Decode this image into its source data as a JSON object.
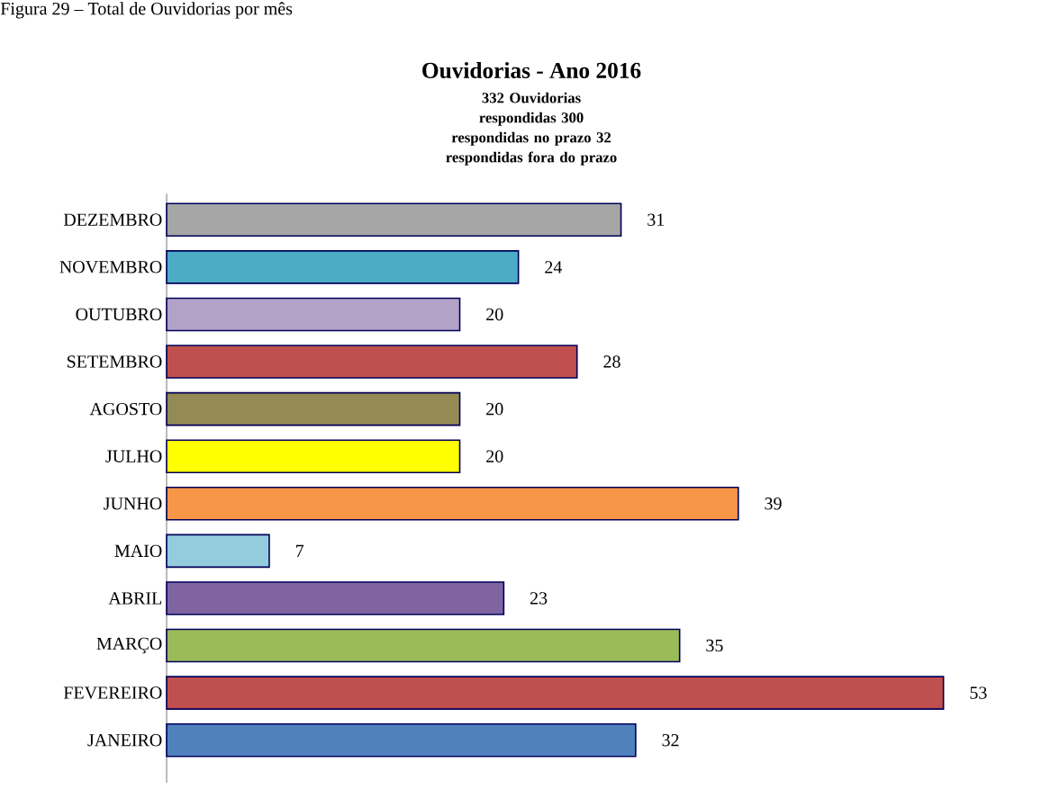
{
  "chart_data": {
    "type": "bar",
    "orientation": "horizontal",
    "title": "Ouvidorias - Ano 2016",
    "subtitle": "332 Ouvidorias respondidas 300 respondidas no prazo 32 respondidas fora do prazo",
    "annotations": [
      "Figura 29 – Total de Ouvidorias por mês"
    ],
    "categories": [
      "DEZEMBRO",
      "NOVEMBRO",
      "OUTUBRO",
      "SETEMBRO",
      "AGOSTO",
      "JULHO",
      "JUNHO",
      "MAIO",
      "ABRIL",
      "MARÇO",
      "FEVEREIRO",
      "JANEIRO"
    ],
    "values": [
      31,
      24,
      20,
      28,
      20,
      20,
      39,
      7,
      23,
      35,
      53,
      32
    ],
    "colors": [
      "#a6a6a6",
      "#4bacc6",
      "#b3a2c7",
      "#c0504d",
      "#948a54",
      "#ffff00",
      "#f79646",
      "#93cddd",
      "#8064a2",
      "#9bbb59",
      "#c0504d",
      "#4f81bd"
    ],
    "data_labels": true
  }
}
